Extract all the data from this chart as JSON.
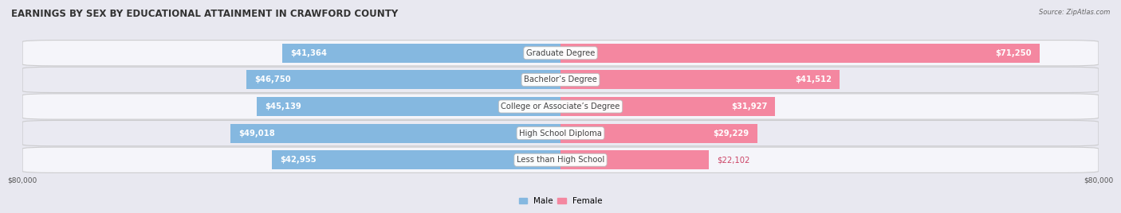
{
  "title": "EARNINGS BY SEX BY EDUCATIONAL ATTAINMENT IN CRAWFORD COUNTY",
  "source": "Source: ZipAtlas.com",
  "categories": [
    "Less than High School",
    "High School Diploma",
    "College or Associate’s Degree",
    "Bachelor’s Degree",
    "Graduate Degree"
  ],
  "male_values": [
    42955,
    49018,
    45139,
    46750,
    41364
  ],
  "female_values": [
    22102,
    29229,
    31927,
    41512,
    71250
  ],
  "max_val": 80000,
  "male_color": "#85b8e0",
  "female_color": "#f487a0",
  "male_color_dark": "#6a9fc8",
  "female_color_dark": "#e8607a",
  "bar_height": 0.72,
  "background_color": "#e8e8f0",
  "row_bg_colors": [
    "#f5f5fa",
    "#eaeaf2"
  ],
  "title_fontsize": 8.5,
  "label_fontsize": 7.2,
  "value_fontsize": 7.2,
  "axis_label_fontsize": 6.5,
  "legend_fontsize": 7.5,
  "male_inside_threshold": 0.35,
  "female_inside_threshold": 0.35
}
